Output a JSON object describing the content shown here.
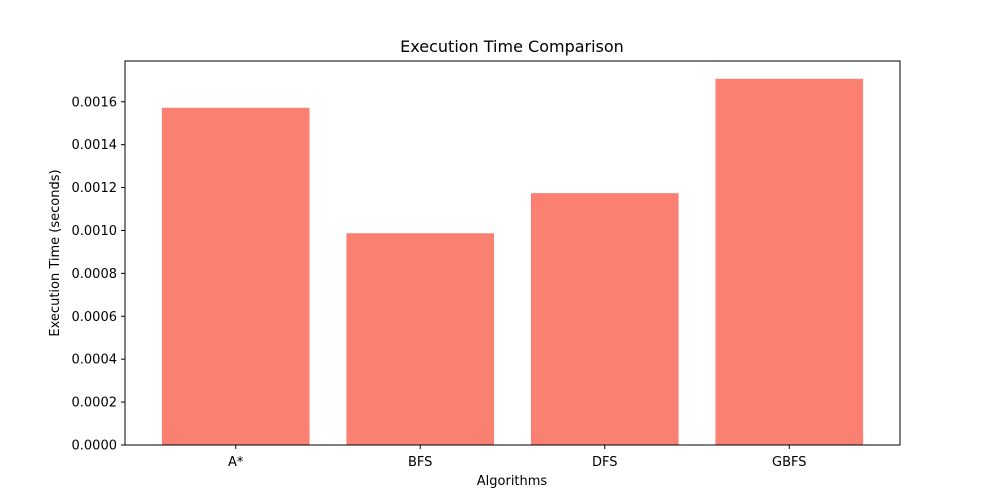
{
  "chart_data": {
    "type": "bar",
    "title": "Execution Time Comparison",
    "xlabel": "Algorithms",
    "ylabel": "Execution Time (seconds)",
    "categories": [
      "A*",
      "BFS",
      "DFS",
      "GBFS"
    ],
    "values": [
      0.001572,
      0.000987,
      0.001174,
      0.001707
    ],
    "ylim": [
      0,
      0.00179
    ],
    "yticks": [
      0.0,
      0.0002,
      0.0004,
      0.0006,
      0.0008,
      0.001,
      0.0012,
      0.0014,
      0.0016
    ],
    "ytick_labels": [
      "0.0000",
      "0.0002",
      "0.0004",
      "0.0006",
      "0.0008",
      "0.0010",
      "0.0012",
      "0.0014",
      "0.0016"
    ],
    "bar_color": "#fa8072",
    "grid": false,
    "legend": "none"
  }
}
